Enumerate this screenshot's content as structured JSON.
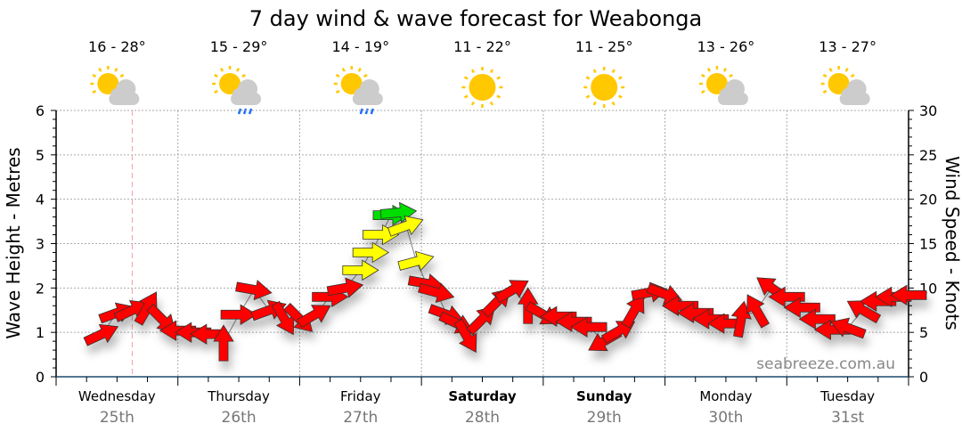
{
  "chart_data": {
    "type": "scatter",
    "title": "7 day wind & wave forecast for Weabonga",
    "ylabel": "Wave Height - Metres",
    "y2label": "Wind Speed - Knots",
    "ylim": [
      0,
      6
    ],
    "y2lim": [
      0,
      30
    ],
    "yticks": [
      "0",
      "1",
      "2",
      "3",
      "4",
      "5",
      "6"
    ],
    "y2ticks": [
      "0",
      "5",
      "10",
      "15",
      "20",
      "25",
      "30"
    ],
    "watermark": "seabreeze.com.au",
    "grid": true,
    "now_hour": 15,
    "days": [
      {
        "name": "Wednesday",
        "date": "25th",
        "bold": false,
        "temp": "16 - 28°",
        "icon": "partly-cloudy-icon"
      },
      {
        "name": "Thursday",
        "date": "26th",
        "bold": false,
        "temp": "15 - 29°",
        "icon": "showers-icon"
      },
      {
        "name": "Friday",
        "date": "27th",
        "bold": false,
        "temp": "14 - 19°",
        "icon": "showers-icon"
      },
      {
        "name": "Saturday",
        "date": "28th",
        "bold": true,
        "temp": "11 - 22°",
        "icon": "sunny-icon"
      },
      {
        "name": "Sunday",
        "date": "29th",
        "bold": true,
        "temp": "11 - 25°",
        "icon": "sunny-icon"
      },
      {
        "name": "Monday",
        "date": "30th",
        "bold": false,
        "temp": "13 - 26°",
        "icon": "partly-cloudy-icon"
      },
      {
        "name": "Tuesday",
        "date": "31st",
        "bold": false,
        "temp": "13 - 27°",
        "icon": "partly-cloudy-icon"
      }
    ],
    "colors": {
      "low": "#ff0000",
      "mid": "#ffff00",
      "high": "#00dd00",
      "sun": "#ffc800",
      "cloud": "#cccccc",
      "rain": "#1a6eff"
    },
    "series": [
      {
        "name": "Wind",
        "unit": "knots",
        "points": [
          {
            "h": 9,
            "kt": 4.8,
            "dir": -25
          },
          {
            "h": 12,
            "kt": 7.2,
            "dir": -20
          },
          {
            "h": 15,
            "kt": 7.5,
            "dir": -25
          },
          {
            "h": 18,
            "kt": 7.8,
            "dir": -60
          },
          {
            "h": 21,
            "kt": 6.4,
            "dir": 45
          },
          {
            "h": 24,
            "kt": 5.2,
            "dir": 180
          },
          {
            "h": 27,
            "kt": 5.0,
            "dir": 180
          },
          {
            "h": 30,
            "kt": 4.8,
            "dir": 180
          },
          {
            "h": 33,
            "kt": 3.8,
            "dir": -90
          },
          {
            "h": 36,
            "kt": 7.0,
            "dir": 0
          },
          {
            "h": 39,
            "kt": 9.8,
            "dir": 10
          },
          {
            "h": 42,
            "kt": 7.5,
            "dir": -20
          },
          {
            "h": 45,
            "kt": 6.5,
            "dir": 60
          },
          {
            "h": 48,
            "kt": 6.5,
            "dir": 45
          },
          {
            "h": 51,
            "kt": 7.0,
            "dir": -30
          },
          {
            "h": 54,
            "kt": 9.0,
            "dir": 0
          },
          {
            "h": 57,
            "kt": 10.0,
            "dir": -10
          },
          {
            "h": 60,
            "kt": 12.0,
            "dir": 0
          },
          {
            "h": 62,
            "kt": 14.0,
            "dir": 0
          },
          {
            "h": 64,
            "kt": 16.0,
            "dir": 0
          },
          {
            "h": 66,
            "kt": 18.2,
            "dir": 0
          },
          {
            "h": 67.5,
            "kt": 18.5,
            "dir": -5
          },
          {
            "h": 69,
            "kt": 17.0,
            "dir": -20
          },
          {
            "h": 71,
            "kt": 13.0,
            "dir": -15
          },
          {
            "h": 73,
            "kt": 10.5,
            "dir": 10
          },
          {
            "h": 75,
            "kt": 9.5,
            "dir": 15
          },
          {
            "h": 77,
            "kt": 7.0,
            "dir": 20
          },
          {
            "h": 79,
            "kt": 6.0,
            "dir": 25
          },
          {
            "h": 81,
            "kt": 4.5,
            "dir": 60
          },
          {
            "h": 84,
            "kt": 6.5,
            "dir": -45
          },
          {
            "h": 87,
            "kt": 8.5,
            "dir": -45
          },
          {
            "h": 90,
            "kt": 9.8,
            "dir": -30
          },
          {
            "h": 93,
            "kt": 8.0,
            "dir": -90
          },
          {
            "h": 96,
            "kt": 7.0,
            "dir": 30
          },
          {
            "h": 99,
            "kt": 6.8,
            "dir": 180
          },
          {
            "h": 102,
            "kt": 6.2,
            "dir": 180
          },
          {
            "h": 105,
            "kt": 5.6,
            "dir": 180
          },
          {
            "h": 108,
            "kt": 4.0,
            "dir": 150
          },
          {
            "h": 111,
            "kt": 5.2,
            "dir": -30
          },
          {
            "h": 114,
            "kt": 7.5,
            "dir": -60
          },
          {
            "h": 117,
            "kt": 9.5,
            "dir": -10
          },
          {
            "h": 120,
            "kt": 9.3,
            "dir": 20
          },
          {
            "h": 123,
            "kt": 8.0,
            "dir": 180
          },
          {
            "h": 126,
            "kt": 7.2,
            "dir": 180
          },
          {
            "h": 129,
            "kt": 6.5,
            "dir": 180
          },
          {
            "h": 132,
            "kt": 6.0,
            "dir": 180
          },
          {
            "h": 135,
            "kt": 6.5,
            "dir": -80
          },
          {
            "h": 138,
            "kt": 7.5,
            "dir": -120
          },
          {
            "h": 141,
            "kt": 10.0,
            "dir": -145
          },
          {
            "h": 144,
            "kt": 9.0,
            "dir": 180
          },
          {
            "h": 147,
            "kt": 7.8,
            "dir": 180
          },
          {
            "h": 150,
            "kt": 6.5,
            "dir": 180
          },
          {
            "h": 153,
            "kt": 5.3,
            "dir": 180
          },
          {
            "h": 156,
            "kt": 5.5,
            "dir": 200
          },
          {
            "h": 159,
            "kt": 7.5,
            "dir": -150
          },
          {
            "h": 162,
            "kt": 8.5,
            "dir": 180
          },
          {
            "h": 165,
            "kt": 9.0,
            "dir": 180
          },
          {
            "h": 168,
            "kt": 9.2,
            "dir": 180
          }
        ]
      }
    ]
  }
}
